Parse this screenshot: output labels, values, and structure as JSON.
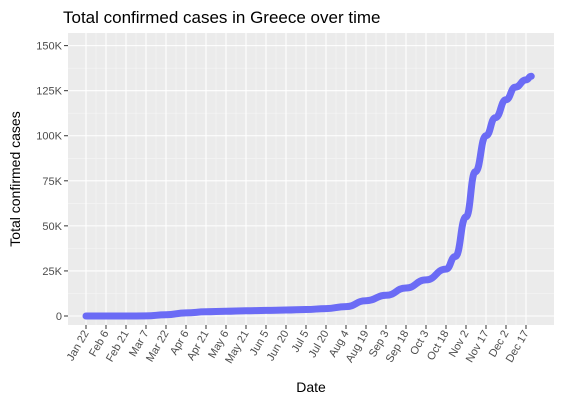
{
  "chart_data": {
    "type": "line",
    "title": "Total confirmed cases in Greece over time",
    "xlabel": "Date",
    "ylabel": "Total confirmed cases",
    "x_tick_labels": [
      "Jan 22",
      "Feb 6",
      "Feb 21",
      "Mar 7",
      "Mar 22",
      "Apr 6",
      "Apr 21",
      "May 6",
      "May 21",
      "Jun 5",
      "Jun 20",
      "Jul 5",
      "Jul 20",
      "Aug 4",
      "Aug 19",
      "Sep 3",
      "Sep 18",
      "Oct 3",
      "Oct 18",
      "Nov 2",
      "Nov 17",
      "Dec 2",
      "Dec 17"
    ],
    "y_tick_labels": [
      "0",
      "25K",
      "50K",
      "75K",
      "100K",
      "125K",
      "150K"
    ],
    "y_ticks": [
      0,
      25000,
      50000,
      75000,
      100000,
      125000,
      150000
    ],
    "ylim": [
      -5000,
      157000
    ],
    "x": [
      "2020-01-22",
      "2020-02-06",
      "2020-02-21",
      "2020-03-07",
      "2020-03-22",
      "2020-04-06",
      "2020-04-21",
      "2020-05-06",
      "2020-05-21",
      "2020-06-05",
      "2020-06-20",
      "2020-07-05",
      "2020-07-20",
      "2020-08-04",
      "2020-08-19",
      "2020-09-03",
      "2020-09-18",
      "2020-10-03",
      "2020-10-18",
      "2020-10-25",
      "2020-11-02",
      "2020-11-09",
      "2020-11-17",
      "2020-11-24",
      "2020-12-02",
      "2020-12-09",
      "2020-12-17",
      "2020-12-21"
    ],
    "y": [
      0,
      0,
      0,
      50,
      700,
      1700,
      2300,
      2600,
      2900,
      3100,
      3300,
      3600,
      4100,
      5200,
      8500,
      11500,
      15500,
      20000,
      26000,
      33000,
      55000,
      80000,
      100000,
      110000,
      120000,
      127000,
      131000,
      133000
    ],
    "grid": true,
    "line_color": "#6b6bf5",
    "panel_color": "#ebebeb"
  }
}
